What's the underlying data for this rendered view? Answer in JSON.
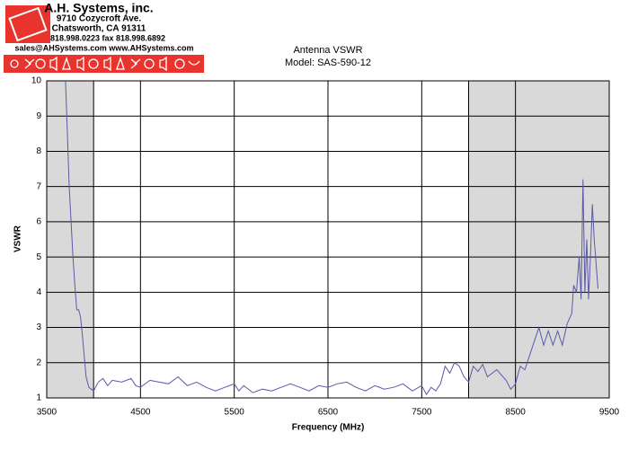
{
  "header": {
    "company": "A.H. Systems, inc.",
    "address": "9710 Cozycroft Ave.",
    "city": "Chatsworth, CA 91311",
    "phone": "818.998.0223 fax 818.998.6892",
    "web": "sales@AHSystems.com www.AHSystems.com"
  },
  "chart_data": {
    "type": "line",
    "title": "Antenna VSWR",
    "subtitle": "Model: SAS-590-12",
    "x_label": "Frequency (MHz)",
    "y_label": "VSWR",
    "xlim": [
      3500,
      9500
    ],
    "xticks": [
      3500,
      4500,
      5500,
      6500,
      7500,
      8500,
      9500
    ],
    "ylim": [
      1,
      10
    ],
    "yticks": [
      1,
      2,
      3,
      4,
      5,
      6,
      7,
      8,
      9,
      10
    ],
    "grid": true,
    "color": "#5a5aa8",
    "shaded_regions": [
      [
        3500,
        4000
      ],
      [
        8000,
        9500
      ]
    ],
    "x": [
      3700,
      3720,
      3740,
      3760,
      3780,
      3800,
      3820,
      3840,
      3860,
      3880,
      3900,
      3920,
      3950,
      4000,
      4050,
      4100,
      4150,
      4200,
      4300,
      4400,
      4450,
      4500,
      4600,
      4700,
      4800,
      4900,
      5000,
      5100,
      5200,
      5300,
      5400,
      5500,
      5550,
      5600,
      5700,
      5800,
      5900,
      6000,
      6100,
      6200,
      6300,
      6400,
      6500,
      6600,
      6700,
      6800,
      6900,
      7000,
      7100,
      7200,
      7300,
      7400,
      7500,
      7550,
      7600,
      7650,
      7700,
      7750,
      7800,
      7850,
      7900,
      7950,
      8000,
      8050,
      8100,
      8150,
      8200,
      8300,
      8400,
      8450,
      8500,
      8550,
      8600,
      8650,
      8700,
      8750,
      8800,
      8850,
      8900,
      8950,
      9000,
      9050,
      9100,
      9120,
      9150,
      9180,
      9200,
      9220,
      9240,
      9260,
      9280,
      9300,
      9320,
      9340,
      9360,
      9380
    ],
    "values": [
      10,
      8.5,
      7,
      6,
      5,
      4.2,
      3.5,
      3.5,
      3.3,
      2.8,
      2.2,
      1.6,
      1.3,
      1.2,
      1.45,
      1.55,
      1.35,
      1.5,
      1.45,
      1.55,
      1.35,
      1.3,
      1.5,
      1.45,
      1.4,
      1.6,
      1.35,
      1.45,
      1.3,
      1.2,
      1.3,
      1.4,
      1.2,
      1.35,
      1.15,
      1.25,
      1.2,
      1.3,
      1.4,
      1.3,
      1.2,
      1.35,
      1.3,
      1.4,
      1.45,
      1.3,
      1.2,
      1.35,
      1.25,
      1.3,
      1.4,
      1.2,
      1.35,
      1.1,
      1.3,
      1.2,
      1.4,
      1.9,
      1.7,
      2.0,
      1.9,
      1.6,
      1.45,
      1.9,
      1.75,
      1.95,
      1.6,
      1.8,
      1.5,
      1.25,
      1.4,
      1.9,
      1.8,
      2.2,
      2.6,
      3.0,
      2.5,
      2.9,
      2.5,
      2.9,
      2.5,
      3.1,
      3.4,
      4.2,
      4.0,
      5.0,
      3.8,
      7.2,
      4.0,
      5.5,
      3.8,
      5.0,
      6.5,
      5.5,
      4.8,
      4.1
    ]
  }
}
